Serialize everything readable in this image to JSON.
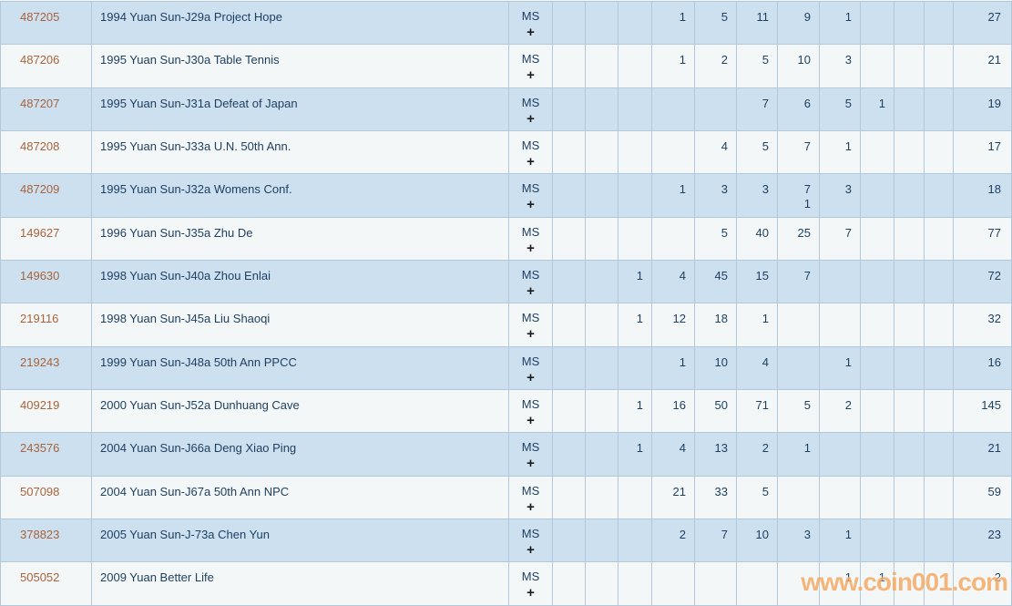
{
  "table": {
    "ms_label": "MS",
    "plus_label": "+",
    "grade_column_count": 11,
    "rows": [
      {
        "id": "487205",
        "description": "1994 Yuan Sun-J29a Project Hope",
        "grades": [
          "",
          "",
          "",
          "1",
          "5",
          "11",
          "9",
          "1",
          "",
          "",
          ""
        ],
        "total": "27"
      },
      {
        "id": "487206",
        "description": "1995 Yuan Sun-J30a Table Tennis",
        "grades": [
          "",
          "",
          "",
          "1",
          "2",
          "5",
          "10",
          "3",
          "",
          "",
          ""
        ],
        "total": "21"
      },
      {
        "id": "487207",
        "description": "1995 Yuan Sun-J31a Defeat of Japan",
        "grades": [
          "",
          "",
          "",
          "",
          "",
          "7",
          "6",
          "5",
          "1",
          "",
          ""
        ],
        "total": "19"
      },
      {
        "id": "487208",
        "description": "1995 Yuan Sun-J33a U.N. 50th Ann.",
        "grades": [
          "",
          "",
          "",
          "",
          "4",
          "5",
          "7",
          "1",
          "",
          "",
          ""
        ],
        "total": "17"
      },
      {
        "id": "487209",
        "description": "1995 Yuan Sun-J32a Womens Conf.",
        "grades": [
          "",
          "",
          "",
          "1",
          "3",
          "3",
          [
            "7",
            "1"
          ],
          "3",
          "",
          "",
          ""
        ],
        "total": "18"
      },
      {
        "id": "149627",
        "description": "1996 Yuan Sun-J35a Zhu De",
        "grades": [
          "",
          "",
          "",
          "",
          "5",
          "40",
          "25",
          "7",
          "",
          "",
          ""
        ],
        "total": "77"
      },
      {
        "id": "149630",
        "description": "1998 Yuan Sun-J40a Zhou Enlai",
        "grades": [
          "",
          "",
          "1",
          "4",
          "45",
          "15",
          "7",
          "",
          "",
          "",
          ""
        ],
        "total": "72"
      },
      {
        "id": "219116",
        "description": "1998 Yuan Sun-J45a Liu Shaoqi",
        "grades": [
          "",
          "",
          "1",
          "12",
          "18",
          "1",
          "",
          "",
          "",
          "",
          ""
        ],
        "total": "32"
      },
      {
        "id": "219243",
        "description": "1999 Yuan Sun-J48a 50th Ann PPCC",
        "grades": [
          "",
          "",
          "",
          "1",
          "10",
          "4",
          "",
          "1",
          "",
          "",
          ""
        ],
        "total": "16"
      },
      {
        "id": "409219",
        "description": "2000 Yuan Sun-J52a Dunhuang Cave",
        "grades": [
          "",
          "",
          "1",
          "16",
          "50",
          "71",
          "5",
          "2",
          "",
          "",
          ""
        ],
        "total": "145"
      },
      {
        "id": "243576",
        "description": "2004 Yuan Sun-J66a Deng Xiao Ping",
        "grades": [
          "",
          "",
          "1",
          "4",
          "13",
          "2",
          "1",
          "",
          "",
          "",
          ""
        ],
        "total": "21"
      },
      {
        "id": "507098",
        "description": "2004 Yuan Sun-J67a 50th Ann NPC",
        "grades": [
          "",
          "",
          "",
          "21",
          "33",
          "5",
          "",
          "",
          "",
          "",
          ""
        ],
        "total": "59"
      },
      {
        "id": "378823",
        "description": "2005 Yuan Sun-J-73a Chen Yun",
        "grades": [
          "",
          "",
          "",
          "2",
          "7",
          "10",
          "3",
          "1",
          "",
          "",
          ""
        ],
        "total": "23"
      },
      {
        "id": "505052",
        "description": "2009 Yuan Better Life",
        "grades": [
          "",
          "",
          "",
          "",
          "",
          "",
          "",
          "1",
          "1",
          "",
          ""
        ],
        "total": "2"
      }
    ]
  },
  "watermark": {
    "text": "www.coin001.com"
  },
  "colors": {
    "row_blue": "#cde0f0",
    "row_light": "#f4f7f8",
    "grid_line": "#b4c8d9",
    "id_link": "#a9633b",
    "text_navy": "#1e4060",
    "watermark_orange": "#f3a65e"
  }
}
